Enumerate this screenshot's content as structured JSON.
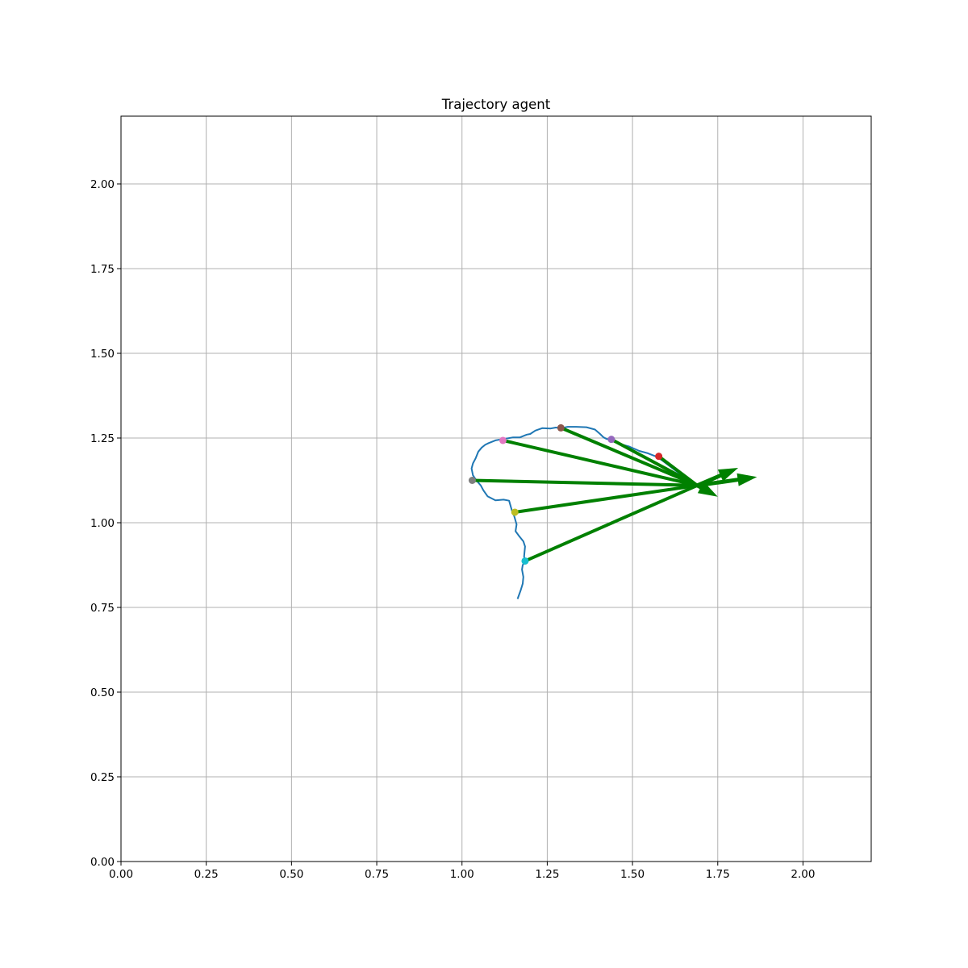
{
  "chart_data": {
    "type": "line",
    "title": "Trajectory agent",
    "xlabel": "",
    "ylabel": "",
    "xlim": [
      0,
      2.2
    ],
    "ylim": [
      0,
      2.2
    ],
    "grid": true,
    "xticks": [
      0,
      0.25,
      0.5,
      0.75,
      1.0,
      1.25,
      1.5,
      1.75,
      2.0
    ],
    "yticks": [
      0,
      0.25,
      0.5,
      0.75,
      1.0,
      1.25,
      1.5,
      1.75,
      2.0
    ],
    "xtick_labels": [
      "0.00",
      "0.25",
      "0.50",
      "0.75",
      "1.00",
      "1.25",
      "1.50",
      "1.75",
      "2.00"
    ],
    "ytick_labels": [
      "0.00",
      "0.25",
      "0.50",
      "0.75",
      "1.00",
      "1.25",
      "1.50",
      "1.75",
      "2.00"
    ],
    "trajectory": {
      "color": "#1f77b4",
      "x": [
        1.163,
        1.172,
        1.178,
        1.18,
        1.176,
        1.178,
        1.185,
        1.182,
        1.185,
        1.18,
        1.168,
        1.157,
        1.16,
        1.153,
        1.148,
        1.138,
        1.122,
        1.098,
        1.075,
        1.063,
        1.055,
        1.042,
        1.032,
        1.028,
        1.032,
        1.04,
        1.048,
        1.058,
        1.068,
        1.078,
        1.098,
        1.12,
        1.15,
        1.17,
        1.19,
        1.2,
        1.215,
        1.235,
        1.26,
        1.275,
        1.29,
        1.31,
        1.335,
        1.365,
        1.39,
        1.405,
        1.415,
        1.425,
        1.438,
        1.46,
        1.49,
        1.52,
        1.545,
        1.57,
        1.588,
        1.605,
        1.625,
        1.645,
        1.665,
        1.685,
        1.7
      ],
      "y": [
        0.775,
        0.8,
        0.82,
        0.84,
        0.862,
        0.875,
        0.887,
        0.9,
        0.93,
        0.945,
        0.96,
        0.975,
        0.995,
        1.02,
        1.03,
        1.065,
        1.068,
        1.066,
        1.078,
        1.095,
        1.11,
        1.125,
        1.14,
        1.16,
        1.175,
        1.19,
        1.21,
        1.222,
        1.23,
        1.235,
        1.243,
        1.247,
        1.252,
        1.252,
        1.26,
        1.262,
        1.272,
        1.279,
        1.278,
        1.281,
        1.279,
        1.283,
        1.283,
        1.282,
        1.275,
        1.262,
        1.252,
        1.247,
        1.245,
        1.233,
        1.225,
        1.212,
        1.205,
        1.195,
        1.183,
        1.17,
        1.155,
        1.14,
        1.128,
        1.115,
        1.107
      ]
    },
    "markers": [
      {
        "x": 1.185,
        "y": 0.887,
        "color": "#17becf"
      },
      {
        "x": 1.155,
        "y": 1.031,
        "color": "#bcbd22"
      },
      {
        "x": 1.03,
        "y": 1.125,
        "color": "#7f7f7f"
      },
      {
        "x": 1.12,
        "y": 1.243,
        "color": "#e377c2"
      },
      {
        "x": 1.29,
        "y": 1.28,
        "color": "#8c564b"
      },
      {
        "x": 1.438,
        "y": 1.246,
        "color": "#9467bd"
      },
      {
        "x": 1.577,
        "y": 1.196,
        "color": "#d62728"
      }
    ],
    "arrows": {
      "color": "#008000",
      "origin": {
        "x": 1.69,
        "y": 1.11
      },
      "vectors": [
        {
          "dx": 0.12,
          "dy": 0.052
        },
        {
          "dx": 0.175,
          "dy": 0.025
        },
        {
          "dx": 0.06,
          "dy": -0.033
        }
      ]
    }
  }
}
